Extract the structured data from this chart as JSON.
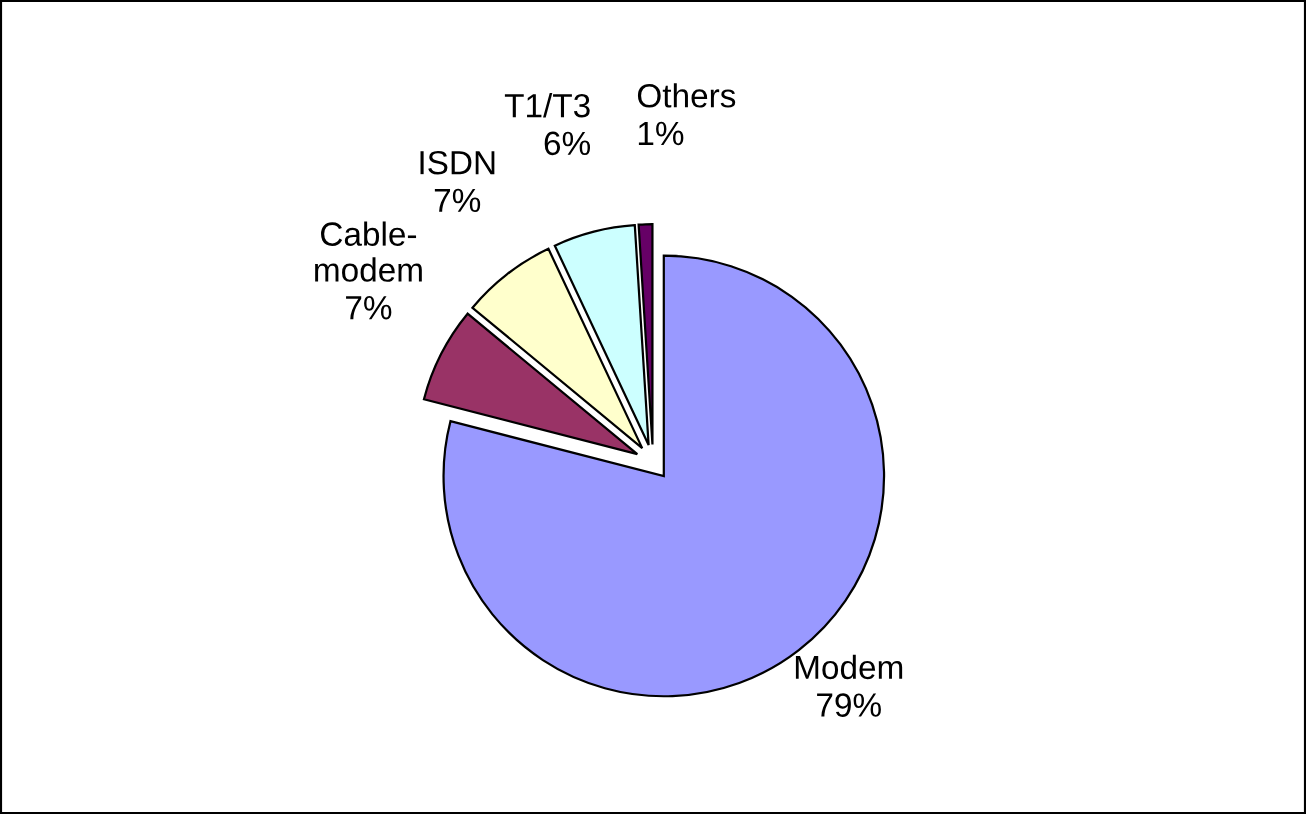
{
  "chart_data": {
    "type": "pie",
    "categories": [
      "Modem",
      "Cable-modem",
      "ISDN",
      "T1/T3",
      "Others"
    ],
    "values": [
      79,
      7,
      7,
      6,
      1
    ],
    "value_labels": [
      "79%",
      "7%",
      "7%",
      "6%",
      "1%"
    ],
    "colors": [
      "#9999ff",
      "#993366",
      "#ffffcc",
      "#ccffff",
      "#660066"
    ]
  }
}
